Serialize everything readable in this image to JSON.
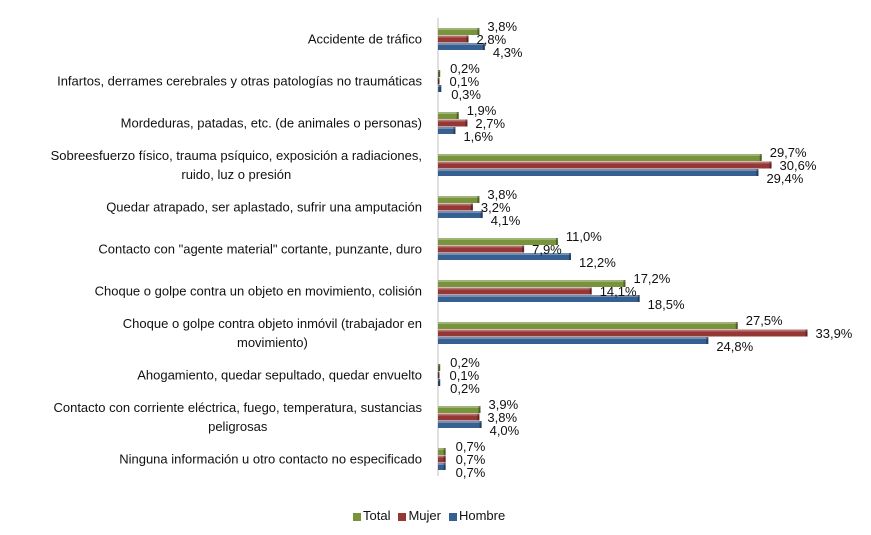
{
  "chart_data": {
    "type": "bar",
    "orientation": "horizontal",
    "categories": [
      "Accidente de tráfico",
      "Infartos, derrames cerebrales y otras patologías no traumáticas",
      "Mordeduras, patadas, etc. (de animales o personas)",
      "Sobreesfuerzo físico, trauma psíquico, exposición a radiaciones, ruido, luz o presión",
      "Quedar atrapado, ser aplastado, sufrir una amputación",
      "Contacto con \"agente material\" cortante, punzante, duro",
      "Choque o golpe contra un objeto en movimiento, colisión",
      "Choque o golpe contra objeto inmóvil  (trabajador en movimiento)",
      "Ahogamiento, quedar sepultado, quedar envuelto",
      "Contacto con corriente eléctrica, fuego, temperatura, sustancias peligrosas",
      "Ninguna información u otro contacto no especificado"
    ],
    "category_lines": [
      "Accidente de tráfico",
      "Infartos, derrames cerebrales y otras patologías no traumáticas",
      "Mordeduras, patadas, etc. (de animales o personas)",
      "Sobreesfuerzo físico, trauma psíquico, exposición a radiaciones,\nruido, luz o presión",
      "Quedar atrapado, ser aplastado, sufrir una amputación",
      "Contacto con \"agente material\" cortante, punzante, duro",
      "Choque o golpe contra un objeto en movimiento, colisión",
      "Choque o golpe contra objeto inmóvil  (trabajador en\nmovimiento)",
      "Ahogamiento, quedar sepultado, quedar envuelto",
      "Contacto con corriente eléctrica, fuego, temperatura, sustancias\npeligrosas",
      "Ninguna información u otro contacto no especificado"
    ],
    "series": [
      {
        "name": "Total",
        "color": "#77933c",
        "values": [
          3.8,
          0.2,
          1.9,
          29.7,
          3.8,
          11.0,
          17.2,
          27.5,
          0.2,
          3.9,
          0.7
        ],
        "labels": [
          "3,8%",
          "0,2%",
          "1,9%",
          "29,7%",
          "3,8%",
          "11,0%",
          "17,2%",
          "27,5%",
          "0,2%",
          "3,9%",
          "0,7%"
        ]
      },
      {
        "name": "Mujer",
        "color": "#953735",
        "values": [
          2.8,
          0.1,
          2.7,
          30.6,
          3.2,
          7.9,
          14.1,
          33.9,
          0.1,
          3.8,
          0.7
        ],
        "labels": [
          "2,8%",
          "0,1%",
          "2,7%",
          "30,6%",
          "3,2%",
          "7,9%",
          "14,1%",
          "33,9%",
          "0,1%",
          "3,8%",
          "0,7%"
        ]
      },
      {
        "name": "Hombre",
        "color": "#376092",
        "values": [
          4.3,
          0.3,
          1.6,
          29.4,
          4.1,
          12.2,
          18.5,
          24.8,
          0.2,
          4.0,
          0.7
        ],
        "labels": [
          "4,3%",
          "0,3%",
          "1,6%",
          "29,4%",
          "4,1%",
          "12,2%",
          "18,5%",
          "24,8%",
          "0,2%",
          "4,0%",
          "0,7%"
        ]
      }
    ],
    "xlim": [
      0,
      35
    ],
    "grid": false,
    "legend_position": "bottom"
  }
}
